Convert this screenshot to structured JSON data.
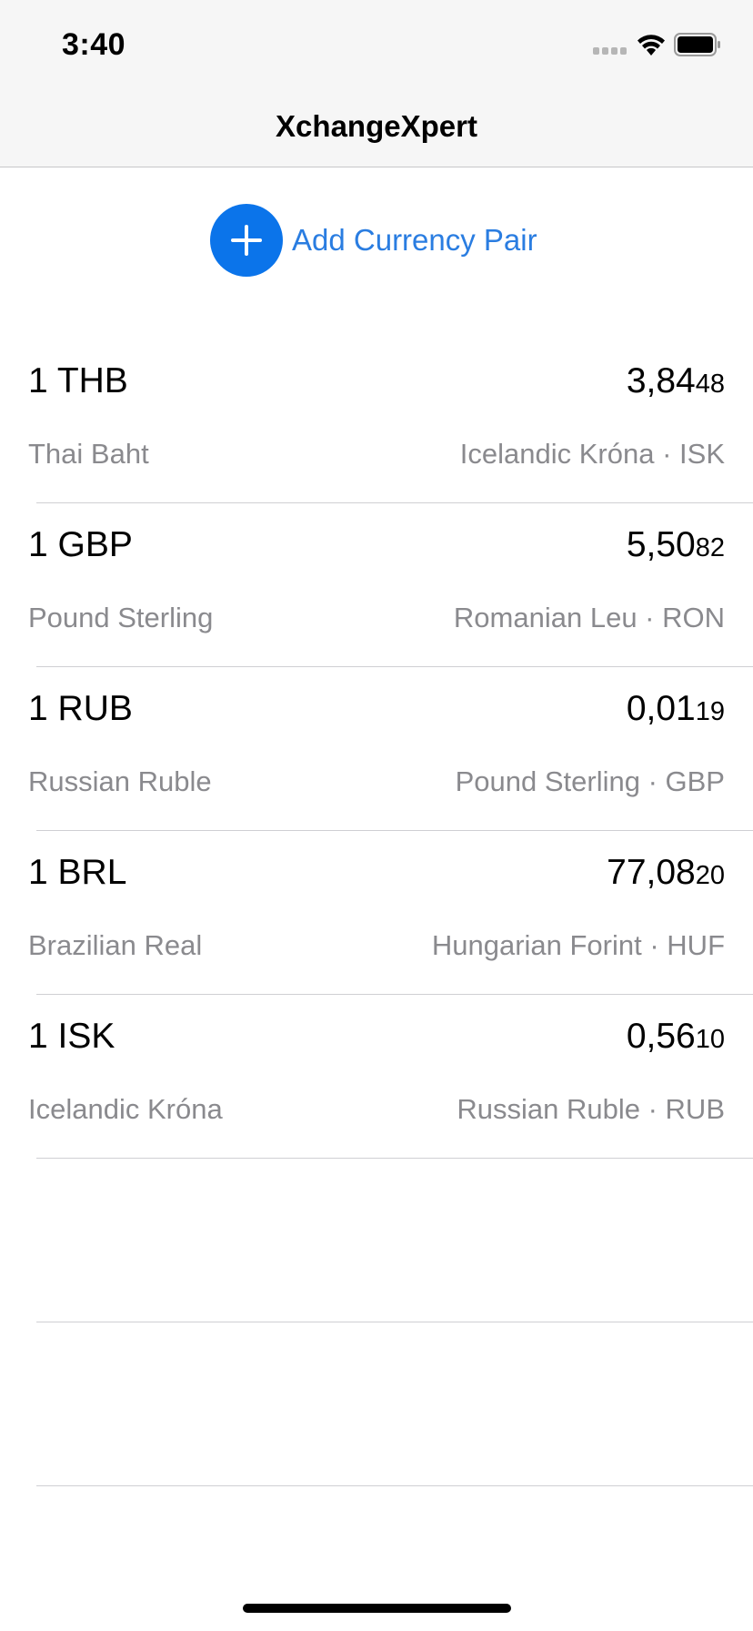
{
  "status_bar": {
    "time": "3:40",
    "icons": [
      "cellular-signal-icon",
      "wifi-icon",
      "battery-icon"
    ]
  },
  "nav": {
    "title": "XchangeXpert"
  },
  "add_pair": {
    "label": "Add Currency Pair",
    "icon": "plus-icon",
    "accent_color": "#0b74ea"
  },
  "pairs": [
    {
      "base_code": "1 THB",
      "base_name": "Thai Baht",
      "rate_major": "3,84",
      "rate_minor": "48",
      "target_name": "Icelandic Króna · ISK"
    },
    {
      "base_code": "1 GBP",
      "base_name": "Pound Sterling",
      "rate_major": "5,50",
      "rate_minor": "82",
      "target_name": "Romanian Leu · RON"
    },
    {
      "base_code": "1 RUB",
      "base_name": "Russian Ruble",
      "rate_major": "0,01",
      "rate_minor": "19",
      "target_name": "Pound Sterling · GBP"
    },
    {
      "base_code": "1 BRL",
      "base_name": "Brazilian Real",
      "rate_major": "77,08",
      "rate_minor": "20",
      "target_name": "Hungarian Forint · HUF"
    },
    {
      "base_code": "1 ISK",
      "base_name": "Icelandic Króna",
      "rate_major": "0,56",
      "rate_minor": "10",
      "target_name": "Russian Ruble · RUB"
    }
  ]
}
